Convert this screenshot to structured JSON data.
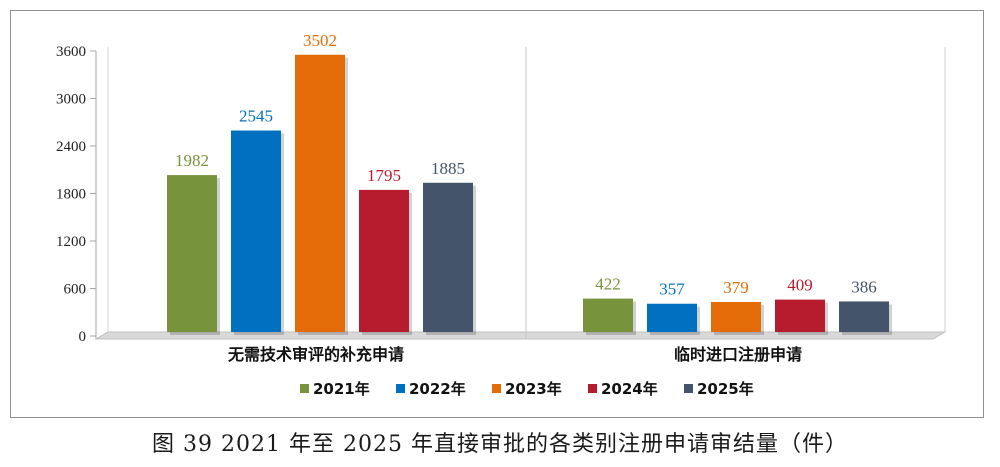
{
  "caption": "图 39   2021 年至 2025 年直接审批的各类别注册申请审结量（件）",
  "chart_data": {
    "type": "bar",
    "categories": [
      "无需技术审评的补充申请",
      "临时进口注册申请"
    ],
    "series": [
      {
        "name": "2021年",
        "values": [
          1982,
          422
        ],
        "color": "#77933c"
      },
      {
        "name": "2022年",
        "values": [
          2545,
          357
        ],
        "color": "#0070c0"
      },
      {
        "name": "2023年",
        "values": [
          3502,
          379
        ],
        "color": "#e36c09"
      },
      {
        "name": "2024年",
        "values": [
          1795,
          409
        ],
        "color": "#b71c2e"
      },
      {
        "name": "2025年",
        "values": [
          1885,
          386
        ],
        "color": "#44546a"
      }
    ],
    "yticks": [
      0,
      600,
      1200,
      1800,
      2400,
      3000,
      3600
    ],
    "ylim": [
      0,
      3600
    ],
    "legend_position": "bottom",
    "grid": false
  }
}
